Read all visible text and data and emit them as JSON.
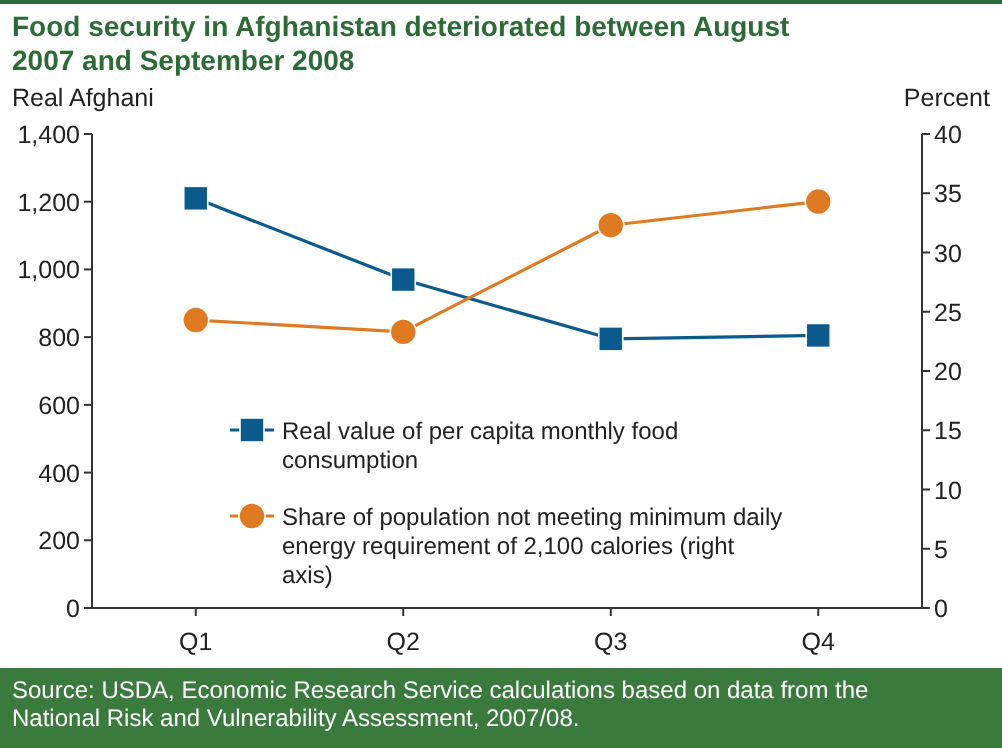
{
  "chart_data": {
    "type": "line",
    "title": "Food security in Afghanistan deteriorated between August 2007 and September 2008",
    "ylabel": "Real Afghani",
    "y2label": "Percent",
    "categories": [
      "Q1",
      "Q2",
      "Q3",
      "Q4"
    ],
    "series": [
      {
        "name": "Real value of per capita monthly food consumption",
        "color": "#0b5a8e",
        "marker": "square",
        "values": [
          1210,
          970,
          795,
          805
        ]
      },
      {
        "name": "Share of population not meeting minimum daily energy requirement of 2,100 calories (right axis)",
        "color": "#e07a22",
        "marker": "circle",
        "axis": "y2",
        "values": [
          24.3,
          23.3,
          32.3,
          34.3
        ]
      }
    ],
    "ylim": [
      0,
      1400
    ],
    "yticks": [
      0,
      200,
      400,
      600,
      800,
      {
        "value": 1000,
        "label": "1,000"
      },
      {
        "value": 1200,
        "label": "1,200"
      },
      {
        "value": 1400,
        "label": "1,400"
      }
    ],
    "y2lim": [
      0,
      40
    ],
    "y2ticks": [
      0,
      5,
      10,
      15,
      20,
      25,
      30,
      35,
      40
    ],
    "legend": "bottom",
    "grid": false,
    "annotations": [
      "Source: USDA, Economic Research Service calculations based on data from the National Risk and Vulnerability Assessment, 2007/08."
    ]
  }
}
